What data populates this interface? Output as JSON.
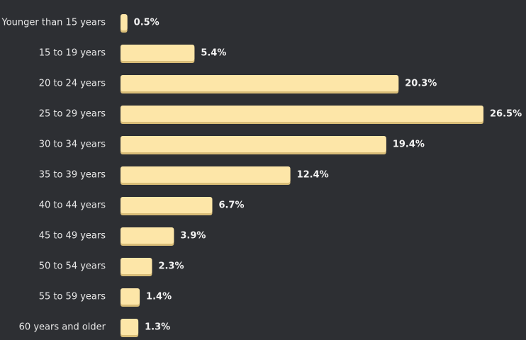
{
  "chart_data": {
    "type": "bar",
    "orientation": "horizontal",
    "title": "",
    "xlabel": "",
    "ylabel": "",
    "categories": [
      "Younger than 15 years",
      "15 to 19 years",
      "20 to 24 years",
      "25 to 29 years",
      "30 to 34 years",
      "35 to 39 years",
      "40 to 44 years",
      "45 to 49 years",
      "50 to 54 years",
      "55 to 59 years",
      "60 years and older"
    ],
    "values": [
      0.5,
      5.4,
      20.3,
      26.5,
      19.4,
      12.4,
      6.7,
      3.9,
      2.3,
      1.4,
      1.3
    ],
    "value_labels": [
      "0.5%",
      "5.4%",
      "20.3%",
      "26.5%",
      "19.4%",
      "12.4%",
      "6.7%",
      "3.9%",
      "2.3%",
      "1.4%",
      "1.3%"
    ],
    "xlim": [
      0,
      26.5
    ],
    "grid": false,
    "legend": "none",
    "colors": {
      "background": "#2d2f33",
      "bar": "#fde6a8",
      "bar_shadow": "#d9bd78",
      "category_text": "#e8e8e8",
      "value_text": "#f2f2f2"
    }
  }
}
